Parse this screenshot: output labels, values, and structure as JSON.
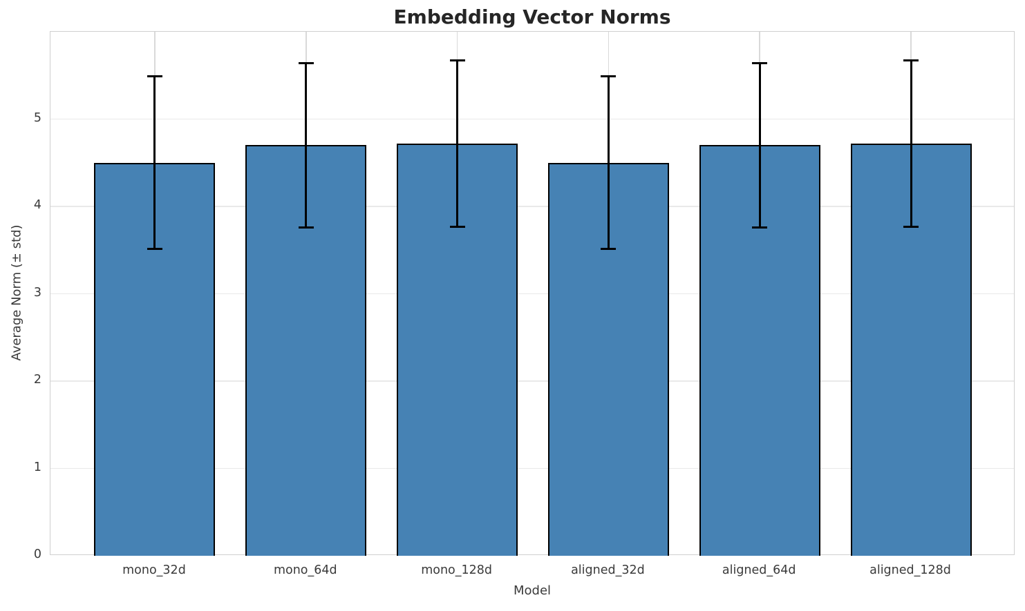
{
  "chart_data": {
    "type": "bar",
    "title": "Embedding Vector Norms",
    "xlabel": "Model",
    "ylabel": "Average Norm (± std)",
    "categories": [
      "mono_32d",
      "mono_64d",
      "mono_128d",
      "aligned_32d",
      "aligned_64d",
      "aligned_128d"
    ],
    "values": [
      4.5,
      4.7,
      4.72,
      4.5,
      4.7,
      4.72
    ],
    "errors": [
      0.99,
      0.94,
      0.95,
      0.99,
      0.94,
      0.95
    ],
    "yticks": [
      0,
      1,
      2,
      3,
      4,
      5
    ],
    "ylim": [
      0,
      6
    ],
    "grid": "on",
    "legend": "none",
    "bar_color": "#4682b4",
    "bar_edge_color": "#000000",
    "error_color": "#000000",
    "grid_color_horizontal": "#e9e9e9",
    "grid_color_vertical": "#d9d9d9",
    "text_color": "#3a3a3a",
    "title_color": "#262626"
  }
}
